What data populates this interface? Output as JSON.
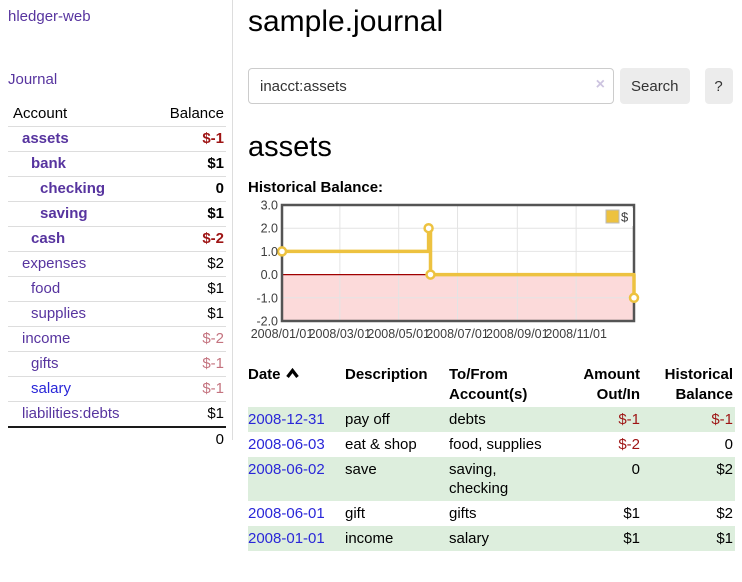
{
  "sidebar": {
    "brand": "hledger-web",
    "nav": {
      "journal_label": "Journal"
    },
    "accounts_table": {
      "headers": [
        "Account",
        "Balance"
      ],
      "rows": [
        {
          "account": "assets",
          "balance": "$-1",
          "indent": 1,
          "bold": true,
          "balance_style": "strong"
        },
        {
          "account": "bank",
          "balance": "$1",
          "indent": 2,
          "bold": true,
          "balance_style": ""
        },
        {
          "account": "checking",
          "balance": "0",
          "indent": 3,
          "bold": true,
          "balance_style": ""
        },
        {
          "account": "saving",
          "balance": "$1",
          "indent": 3,
          "bold": true,
          "balance_style": ""
        },
        {
          "account": "cash",
          "balance": "$-2",
          "indent": 2,
          "bold": true,
          "balance_style": "strong"
        },
        {
          "account": "expenses",
          "balance": "$2",
          "indent": 1,
          "bold": false,
          "balance_style": ""
        },
        {
          "account": "food",
          "balance": "$1",
          "indent": 2,
          "bold": false,
          "balance_style": ""
        },
        {
          "account": "supplies",
          "balance": "$1",
          "indent": 2,
          "bold": false,
          "balance_style": ""
        },
        {
          "account": "income",
          "balance": "$-2",
          "indent": 1,
          "bold": false,
          "balance_style": "soft"
        },
        {
          "account": "gifts",
          "balance": "$-1",
          "indent": 2,
          "bold": false,
          "balance_style": "soft"
        },
        {
          "account": "salary",
          "balance": "$-1",
          "indent": 2,
          "bold": false,
          "balance_style": "soft",
          "link_color": "blue"
        },
        {
          "account": "liabilities:debts",
          "balance": "$1",
          "indent": 1,
          "bold": false,
          "balance_style": ""
        }
      ],
      "total": "0"
    }
  },
  "header": {
    "title": "sample.journal"
  },
  "search": {
    "value": "inacct:assets",
    "clear_icon": "×",
    "button_label": "Search",
    "help_label": "?"
  },
  "account_page": {
    "title": "assets",
    "chart_label": "Historical Balance:"
  },
  "chart_data": {
    "type": "line",
    "subtype": "step",
    "title": "Historical Balance",
    "legend": {
      "label": "$",
      "position": "top-right",
      "swatch_color": "#edc240"
    },
    "series": [
      {
        "name": "$",
        "color": "#edc240",
        "points": [
          {
            "date": "2008-01-01",
            "day": 0,
            "value": 1
          },
          {
            "date": "2008-06-01",
            "day": 152,
            "value": 2
          },
          {
            "date": "2008-06-03",
            "day": 154,
            "value": 0
          },
          {
            "date": "2008-12-31",
            "day": 365,
            "value": -1
          }
        ]
      }
    ],
    "x_ticks": [
      {
        "day": 0,
        "label": "2008/01/01"
      },
      {
        "day": 60,
        "label": "2008/03/01"
      },
      {
        "day": 121,
        "label": "2008/05/01"
      },
      {
        "day": 182,
        "label": "2008/07/01"
      },
      {
        "day": 244,
        "label": "2008/09/01"
      },
      {
        "day": 305,
        "label": "2008/11/01"
      }
    ],
    "y_ticks": [
      {
        "value": 3,
        "label": "3.0"
      },
      {
        "value": 2,
        "label": "2.0"
      },
      {
        "value": 1,
        "label": "1.0"
      },
      {
        "value": 0,
        "label": "0.0"
      },
      {
        "value": -1,
        "label": "-1.0"
      },
      {
        "value": -2,
        "label": "-2.0"
      }
    ],
    "ylim": [
      -2,
      3
    ],
    "xlim_days": [
      0,
      365
    ],
    "grid": true,
    "negative_region_color": "#fcdada",
    "zero_line_color": "#a00000",
    "plot_border_color": "#545454",
    "grid_color": "#e4e4e4",
    "tick_text_color": "#3d3d3d"
  },
  "transactions": {
    "columns": [
      {
        "line1": "Date",
        "line2": "",
        "align": "left",
        "sorted": "asc"
      },
      {
        "line1": "Description",
        "line2": "",
        "align": "left"
      },
      {
        "line1": "To/From",
        "line2": "Account(s)",
        "align": "left"
      },
      {
        "line1": "Amount",
        "line2": "Out/In",
        "align": "right"
      },
      {
        "line1": "Historical",
        "line2": "Balance",
        "align": "right"
      }
    ],
    "rows": [
      {
        "date": "2008-12-31",
        "description": "pay off",
        "accounts": "debts",
        "amount": "$-1",
        "amount_negative": true,
        "balance": "$-1",
        "balance_negative": true
      },
      {
        "date": "2008-06-03",
        "description": "eat & shop",
        "accounts": "food, supplies",
        "amount": "$-2",
        "amount_negative": true,
        "balance": "0",
        "balance_negative": false
      },
      {
        "date": "2008-06-02",
        "description": "save",
        "accounts": "saving, checking",
        "amount": "0",
        "amount_negative": false,
        "balance": "$2",
        "balance_negative": false
      },
      {
        "date": "2008-06-01",
        "description": "gift",
        "accounts": "gifts",
        "amount": "$1",
        "amount_negative": false,
        "balance": "$2",
        "balance_negative": false
      },
      {
        "date": "2008-01-01",
        "description": "income",
        "accounts": "salary",
        "amount": "$1",
        "amount_negative": false,
        "balance": "$1",
        "balance_negative": false
      }
    ]
  }
}
